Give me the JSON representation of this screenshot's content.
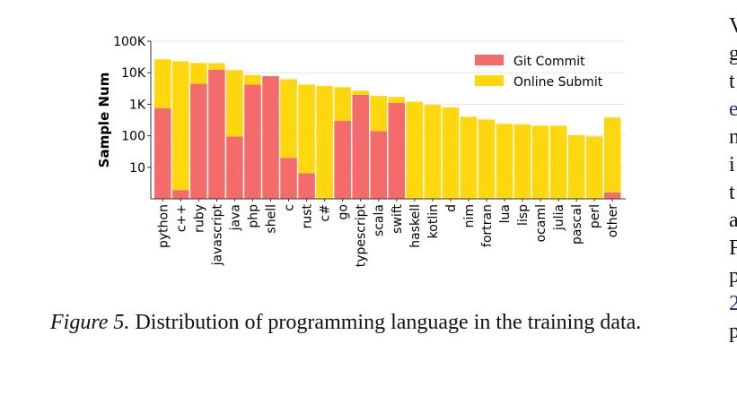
{
  "chart_data": {
    "type": "bar",
    "stacked": true,
    "yscale": "log",
    "ylim": [
      1,
      100000
    ],
    "ylabel": "Sample Num",
    "yticks": [
      "10",
      "100",
      "1K",
      "10K",
      "100K"
    ],
    "grid": true,
    "legend_position": "top-right",
    "categories": [
      "python",
      "c++",
      "ruby",
      "javascript",
      "java",
      "php",
      "shell",
      "c",
      "rust",
      "c#",
      "go",
      "typescript",
      "scala",
      "swift",
      "haskell",
      "kotlin",
      "d",
      "nim",
      "fortran",
      "lua",
      "lisp",
      "ocaml",
      "julia",
      "pascal",
      "perl",
      "other"
    ],
    "series": [
      {
        "name": "Git Commit",
        "color": "#f46b6b",
        "values": [
          750,
          1.9,
          4500,
          12500,
          95,
          4200,
          7800,
          20,
          6.5,
          0,
          300,
          2000,
          140,
          1100,
          0,
          0,
          0,
          0,
          0,
          0,
          0,
          0,
          0,
          0,
          0,
          1.6
        ]
      },
      {
        "name": "Online Submit",
        "color": "#ffd70f",
        "values": [
          26000,
          23000,
          16000,
          7500,
          12000,
          4300,
          0,
          6200,
          4200,
          3800,
          3200,
          700,
          1700,
          600,
          1200,
          950,
          800,
          400,
          330,
          240,
          230,
          210,
          210,
          105,
          95,
          380
        ]
      }
    ]
  },
  "caption": {
    "label": "Figure 5.",
    "text": "Distribution of programming language in the training data."
  },
  "side_column": {
    "lines": [
      "V",
      "g",
      "t",
      "e",
      "n",
      "i",
      "t",
      "a",
      "F",
      "p",
      "2",
      "p"
    ],
    "link_lines": [
      3,
      10
    ]
  }
}
